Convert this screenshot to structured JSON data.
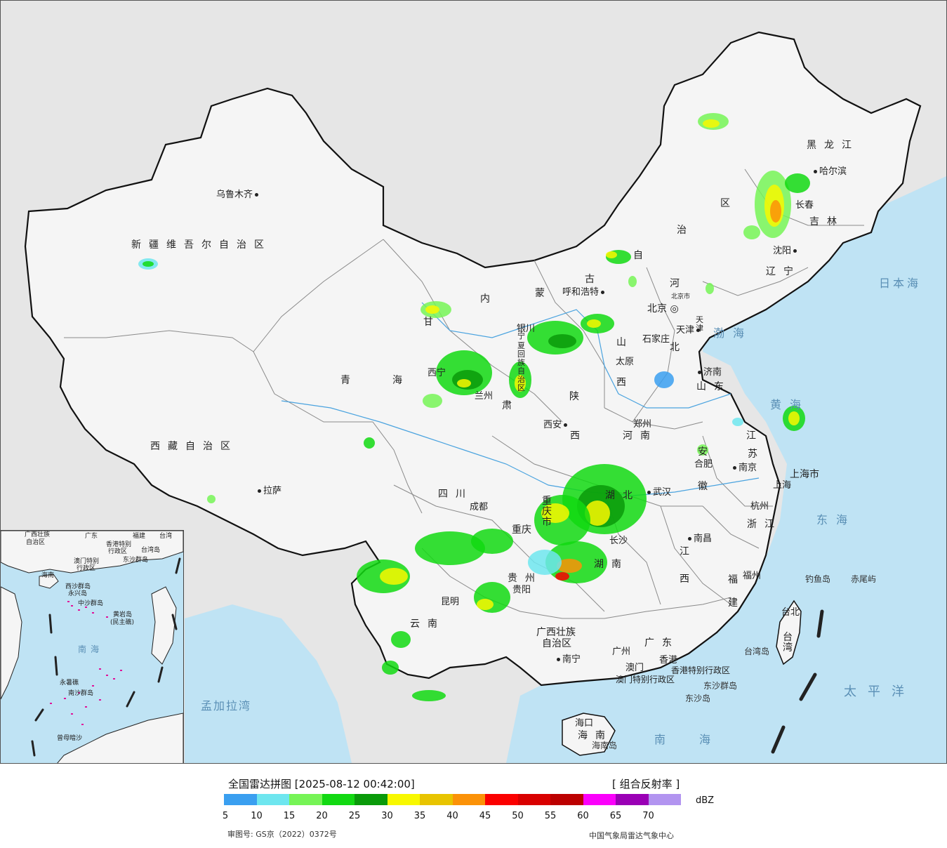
{
  "map": {
    "colors": {
      "background": "#e6e6e6",
      "land": "#f4f4f4",
      "sea": "#bfe3f4",
      "border": "#111111",
      "province_border": "#888888",
      "river": "#4aa3df"
    },
    "provinces": [
      {
        "id": "xinjiang",
        "name": "新疆维吾尔自治区"
      },
      {
        "id": "xizang",
        "name": "西藏自治区"
      },
      {
        "id": "qinghai_1",
        "name": "青"
      },
      {
        "id": "qinghai_2",
        "name": "海"
      },
      {
        "id": "gansu_1",
        "name": "甘"
      },
      {
        "id": "gansu_2",
        "name": "肃"
      },
      {
        "id": "neimenggu_1",
        "name": "内"
      },
      {
        "id": "neimenggu_2",
        "name": "蒙"
      },
      {
        "id": "neimenggu_3",
        "name": "古"
      },
      {
        "id": "neimenggu_4",
        "name": "自"
      },
      {
        "id": "neimenggu_5",
        "name": "治"
      },
      {
        "id": "neimenggu_6",
        "name": "区"
      },
      {
        "id": "heilongjiang",
        "name": "黑龙江"
      },
      {
        "id": "jilin",
        "name": "吉林"
      },
      {
        "id": "liaoning",
        "name": "辽宁"
      },
      {
        "id": "hebei_1",
        "name": "河"
      },
      {
        "id": "hebei_2",
        "name": "北"
      },
      {
        "id": "shanxi_1",
        "name": "山"
      },
      {
        "id": "shanxi_2",
        "name": "西"
      },
      {
        "id": "shaanxi_1",
        "name": "陕"
      },
      {
        "id": "shaanxi_2",
        "name": "西"
      },
      {
        "id": "shandong",
        "name": "山东"
      },
      {
        "id": "henan",
        "name": "河南"
      },
      {
        "id": "jiangsu_1",
        "name": "江"
      },
      {
        "id": "jiangsu_2",
        "name": "苏"
      },
      {
        "id": "anhui_1",
        "name": "安"
      },
      {
        "id": "anhui_2",
        "name": "徽"
      },
      {
        "id": "sichuan",
        "name": "四川"
      },
      {
        "id": "hubei",
        "name": "湖北"
      },
      {
        "id": "hunan",
        "name": "湖南"
      },
      {
        "id": "zhejiang",
        "name": "浙江"
      },
      {
        "id": "jiangxi_1",
        "name": "江"
      },
      {
        "id": "jiangxi_2",
        "name": "西"
      },
      {
        "id": "fujian_1",
        "name": "福"
      },
      {
        "id": "fujian_2",
        "name": "建"
      },
      {
        "id": "guizhou",
        "name": "贵州"
      },
      {
        "id": "yunnan",
        "name": "云南"
      },
      {
        "id": "guangxi_1",
        "name": "广西壮族"
      },
      {
        "id": "guangxi_2",
        "name": "自治区"
      },
      {
        "id": "guangdong",
        "name": "广东"
      },
      {
        "id": "hainan",
        "name": "海南"
      },
      {
        "id": "taiwan",
        "name": "台湾"
      },
      {
        "id": "ningxia_1",
        "name": "宁"
      },
      {
        "id": "ningxia_2",
        "name": "夏"
      },
      {
        "id": "ningxia_3",
        "name": "回"
      },
      {
        "id": "ningxia_4",
        "name": "族"
      },
      {
        "id": "ningxia_5",
        "name": "自"
      },
      {
        "id": "ningxia_6",
        "name": "治"
      },
      {
        "id": "ningxia_7",
        "name": "区"
      },
      {
        "id": "chongqing",
        "name": "重庆市"
      },
      {
        "id": "shanghai_muni",
        "name": "上海市"
      },
      {
        "id": "tianjin_muni",
        "name": "天津"
      },
      {
        "id": "beijing_muni",
        "name": "北京市"
      },
      {
        "id": "hk_sar",
        "name": "香港特别行政区"
      },
      {
        "id": "macau_sar",
        "name": "澳门特别行政区"
      }
    ],
    "cities": [
      {
        "id": "urumqi",
        "name": "乌鲁木齐"
      },
      {
        "id": "lhasa",
        "name": "拉萨"
      },
      {
        "id": "xining",
        "name": "西宁"
      },
      {
        "id": "lanzhou",
        "name": "兰州"
      },
      {
        "id": "yinchuan",
        "name": "银川"
      },
      {
        "id": "hohhot",
        "name": "呼和浩特"
      },
      {
        "id": "harbin",
        "name": "哈尔滨"
      },
      {
        "id": "changchun",
        "name": "长春"
      },
      {
        "id": "shenyang",
        "name": "沈阳"
      },
      {
        "id": "beijing",
        "name": "北京"
      },
      {
        "id": "tianjin",
        "name": "天津"
      },
      {
        "id": "shijiazhuang",
        "name": "石家庄"
      },
      {
        "id": "taiyuan",
        "name": "太原"
      },
      {
        "id": "jinan",
        "name": "济南"
      },
      {
        "id": "xian",
        "name": "西安"
      },
      {
        "id": "zhengzhou",
        "name": "郑州"
      },
      {
        "id": "hefei",
        "name": "合肥"
      },
      {
        "id": "nanjing",
        "name": "南京"
      },
      {
        "id": "shanghai",
        "name": "上海"
      },
      {
        "id": "hangzhou",
        "name": "杭州"
      },
      {
        "id": "wuhan",
        "name": "武汉"
      },
      {
        "id": "chengdu",
        "name": "成都"
      },
      {
        "id": "chongqing_city",
        "name": "重庆"
      },
      {
        "id": "changsha",
        "name": "长沙"
      },
      {
        "id": "nanchang",
        "name": "南昌"
      },
      {
        "id": "fuzhou",
        "name": "福州"
      },
      {
        "id": "guiyang",
        "name": "贵阳"
      },
      {
        "id": "kunming",
        "name": "昆明"
      },
      {
        "id": "nanning",
        "name": "南宁"
      },
      {
        "id": "guangzhou",
        "name": "广州"
      },
      {
        "id": "hongkong",
        "name": "香港"
      },
      {
        "id": "macau",
        "name": "澳门"
      },
      {
        "id": "haikou",
        "name": "海口"
      },
      {
        "id": "taibei",
        "name": "台北"
      }
    ],
    "seas": [
      {
        "id": "bohai",
        "name": "渤海"
      },
      {
        "id": "yellow_sea",
        "name": "黄海"
      },
      {
        "id": "east_sea",
        "name": "东海"
      },
      {
        "id": "south_sea",
        "name": "南海"
      },
      {
        "id": "japan_sea",
        "name": "日本海"
      },
      {
        "id": "pacific",
        "name": "太平洋"
      },
      {
        "id": "bengal",
        "name": "孟加拉湾"
      }
    ],
    "islands": [
      {
        "id": "diaoyu",
        "name": "钓鱼岛"
      },
      {
        "id": "chiwei",
        "name": "赤尾屿"
      },
      {
        "id": "dongsha_islands",
        "name": "东沙群岛"
      },
      {
        "id": "dongsha_island",
        "name": "东沙岛"
      },
      {
        "id": "hainan_island",
        "name": "海南岛"
      },
      {
        "id": "taiwan_island",
        "name": "台湾岛"
      }
    ],
    "inset": {
      "labels": [
        {
          "id": "i_guangxi",
          "name": "广西壮族"
        },
        {
          "id": "i_guangxi2",
          "name": "自治区"
        },
        {
          "id": "i_guangdong",
          "name": "广东"
        },
        {
          "id": "i_fujian",
          "name": "福建"
        },
        {
          "id": "i_taiwan",
          "name": "台湾"
        },
        {
          "id": "i_hk",
          "name": "香港特别"
        },
        {
          "id": "i_hk2",
          "name": "行政区"
        },
        {
          "id": "i_macau",
          "name": "澳门特别"
        },
        {
          "id": "i_macau2",
          "name": "行政区"
        },
        {
          "id": "i_taiwan_isl",
          "name": "台湾岛"
        },
        {
          "id": "i_dongsha",
          "name": "东沙群岛"
        },
        {
          "id": "i_hainan",
          "name": "海南"
        },
        {
          "id": "i_xisha",
          "name": "西沙群岛"
        },
        {
          "id": "i_zhongsha",
          "name": "中沙群岛"
        },
        {
          "id": "i_huangyan",
          "name": "黄岩岛"
        },
        {
          "id": "i_huangyan2",
          "name": "(民主礁)"
        },
        {
          "id": "i_yongshu",
          "name": "永暑礁"
        },
        {
          "id": "i_nansha",
          "name": "南沙群岛"
        },
        {
          "id": "i_zengmu",
          "name": "曾母暗沙"
        },
        {
          "id": "i_nanhai",
          "name": "南海"
        },
        {
          "id": "i_sansha",
          "name": "永兴岛"
        }
      ]
    }
  },
  "legend": {
    "title": "全国雷达拼图 [2025-08-12 00:42:00]",
    "product": "[ 组合反射率 ]",
    "unit": "dBZ",
    "approval": "审图号: GS京（2022）0372号",
    "agency": "中国气象局雷达气象中心",
    "scale": [
      {
        "value": "5",
        "color": "#3a9ff0"
      },
      {
        "value": "10",
        "color": "#6ee6ef"
      },
      {
        "value": "15",
        "color": "#76f456"
      },
      {
        "value": "20",
        "color": "#12d912"
      },
      {
        "value": "25",
        "color": "#0a9a0a"
      },
      {
        "value": "30",
        "color": "#f8f800"
      },
      {
        "value": "35",
        "color": "#e8c400"
      },
      {
        "value": "40",
        "color": "#fb9208"
      },
      {
        "value": "45",
        "color": "#fb0000"
      },
      {
        "value": "50",
        "color": "#d90000"
      },
      {
        "value": "55",
        "color": "#bc0000"
      },
      {
        "value": "60",
        "color": "#fb00fb"
      },
      {
        "value": "65",
        "color": "#9a00b5"
      },
      {
        "value": "70",
        "color": "#b294f0"
      }
    ]
  }
}
